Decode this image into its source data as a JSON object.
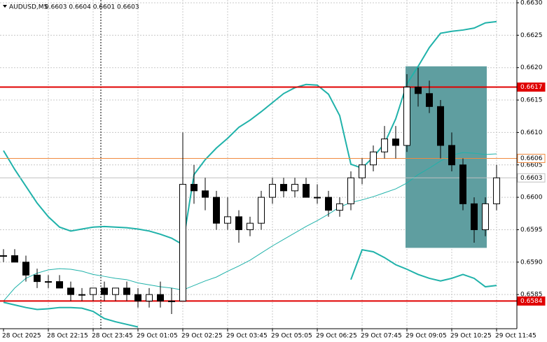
{
  "chart_data": {
    "type": "candlestick",
    "title": "AUDUSD,M5",
    "subtitle": "0.6603 0.6604 0.6601 0.6603",
    "categories": [
      "28 Oct 2025",
      null,
      null,
      null,
      "28 Oct 22:15",
      null,
      null,
      null,
      "28 Oct 23:45",
      null,
      null,
      null,
      "29 Oct 01:05",
      null,
      null,
      null,
      "29 Oct 02:25",
      null,
      null,
      null,
      "29 Oct 03:45",
      null,
      null,
      null,
      "29 Oct 05:05",
      null,
      null,
      null,
      "29 Oct 06:25",
      null,
      null,
      null,
      "29 Oct 07:45",
      null,
      null,
      null,
      "29 Oct 09:05",
      null,
      null,
      null,
      "29 Oct 10:25",
      null,
      null,
      null,
      "29 Oct 11:45"
    ],
    "open": [
      0.6591,
      0.6591,
      0.659,
      0.6588,
      0.6587,
      0.6587,
      0.6586,
      0.6585,
      0.6585,
      0.6586,
      0.6585,
      0.6586,
      0.6585,
      0.6584,
      0.6585,
      0.6584,
      0.6584,
      0.6602,
      0.6601,
      0.66,
      0.6596,
      0.6597,
      0.6595,
      0.6596,
      0.66,
      0.6602,
      0.6601,
      0.6602,
      0.66,
      0.66,
      0.6598,
      0.6599,
      0.6603,
      0.6605,
      0.6607,
      0.6609,
      0.6608,
      0.6617,
      0.6616,
      0.6614,
      0.6608,
      0.6605,
      0.6599,
      0.6595,
      0.6599
    ],
    "high": [
      0.6592,
      0.6592,
      0.6591,
      0.6589,
      0.6588,
      0.6588,
      0.6587,
      0.6586,
      0.6586,
      0.6587,
      0.6586,
      0.6587,
      0.6586,
      0.6586,
      0.6587,
      0.6586,
      0.661,
      0.6605,
      0.6603,
      0.6601,
      0.66,
      0.6598,
      0.6597,
      0.6601,
      0.6603,
      0.6603,
      0.6603,
      0.6603,
      0.6602,
      0.6601,
      0.66,
      0.6604,
      0.6606,
      0.6608,
      0.6611,
      0.6611,
      0.6619,
      0.662,
      0.6618,
      0.6615,
      0.661,
      0.6606,
      0.66,
      0.66,
      0.6605
    ],
    "low": [
      0.659,
      0.659,
      0.6587,
      0.6586,
      0.6586,
      0.6586,
      0.6584,
      0.6584,
      0.6584,
      0.6584,
      0.6584,
      0.6584,
      0.6583,
      0.6583,
      0.6583,
      0.6582,
      0.6584,
      0.6599,
      0.6598,
      0.6595,
      0.6595,
      0.6593,
      0.6594,
      0.6595,
      0.6599,
      0.66,
      0.66,
      0.66,
      0.6599,
      0.6597,
      0.6597,
      0.6598,
      0.6602,
      0.6604,
      0.6606,
      0.6606,
      0.6607,
      0.6614,
      0.6613,
      0.6606,
      0.6604,
      0.6598,
      0.6593,
      0.6594,
      0.6598
    ],
    "close": [
      0.6591,
      0.659,
      0.6588,
      0.6587,
      0.6587,
      0.6586,
      0.6585,
      0.6585,
      0.6586,
      0.6585,
      0.6586,
      0.6585,
      0.6584,
      0.6585,
      0.6584,
      0.6584,
      0.6602,
      0.6601,
      0.66,
      0.6596,
      0.6597,
      0.6595,
      0.6596,
      0.66,
      0.6602,
      0.6601,
      0.6602,
      0.66,
      0.66,
      0.6598,
      0.6599,
      0.6603,
      0.6605,
      0.6607,
      0.6609,
      0.6608,
      0.6617,
      0.6616,
      0.6614,
      0.6608,
      0.6605,
      0.6599,
      0.6595,
      0.6599,
      0.6603
    ],
    "up_color": "#ffffff",
    "down_color": "#000000",
    "bands": {
      "color": "#20b2aa",
      "upper": [
        0.66072,
        0.66043,
        0.66017,
        0.65991,
        0.6597,
        0.65954,
        0.65948,
        0.65951,
        0.65954,
        0.65955,
        0.65954,
        0.65953,
        0.65951,
        0.65948,
        0.65943,
        0.65937,
        0.65927,
        0.66035,
        0.66058,
        0.66076,
        0.66091,
        0.66108,
        0.66119,
        0.66132,
        0.66146,
        0.6616,
        0.66169,
        0.66174,
        0.66173,
        0.66159,
        0.66126,
        0.66051,
        0.66045,
        0.66062,
        0.66083,
        0.66121,
        0.66175,
        0.66202,
        0.66231,
        0.66253,
        0.66256,
        0.66258,
        0.66261,
        0.66269,
        0.66271
      ],
      "middle": [
        0.6584,
        0.6586,
        0.65875,
        0.65883,
        0.65888,
        0.6589,
        0.65889,
        0.65886,
        0.65881,
        0.65878,
        0.65875,
        0.65873,
        0.65868,
        0.65865,
        0.65862,
        0.6586,
        0.65857,
        0.65864,
        0.65871,
        0.65877,
        0.65886,
        0.65894,
        0.65903,
        0.65914,
        0.65925,
        0.65935,
        0.65945,
        0.65955,
        0.65964,
        0.65974,
        0.65985,
        0.65992,
        0.65996,
        0.66001,
        0.66007,
        0.66013,
        0.66022,
        0.66035,
        0.66045,
        0.66056,
        0.66065,
        0.66069,
        0.66068,
        0.66066,
        0.66067
      ],
      "lower": [
        0.65838,
        0.65834,
        0.6583,
        0.65827,
        0.65828,
        0.6583,
        0.6583,
        0.65829,
        0.65824,
        0.65813,
        0.65808,
        0.65804,
        0.658,
        null,
        null,
        null,
        null,
        null,
        null,
        null,
        null,
        null,
        null,
        null,
        null,
        null,
        null,
        null,
        null,
        null,
        null,
        0.65873,
        0.65919,
        0.65916,
        0.65907,
        0.65896,
        0.65889,
        0.65881,
        0.65875,
        0.65871,
        0.65875,
        0.65881,
        0.65875,
        0.65862,
        0.65864
      ]
    },
    "levels": [
      {
        "value": 0.6617,
        "color": "#e00000",
        "label_bg": "#e00000",
        "label_color": "#ffffff",
        "width": 2
      },
      {
        "value": 0.6606,
        "color": "#f08a40",
        "label_bg": "#ffffff",
        "label_color": "#000000",
        "width": 1
      },
      {
        "value": 0.6603,
        "color": "#c0c0c0",
        "label_bg": "#ffffff",
        "label_color": "#000000",
        "width": 1
      },
      {
        "value": 0.6584,
        "color": "#e00000",
        "label_bg": "#e00000",
        "label_color": "#ffffff",
        "width": 2
      }
    ],
    "zone": {
      "color": "#5f9ea0",
      "ylim": [
        0.65922,
        0.66202
      ],
      "index_range": [
        36,
        43
      ]
    },
    "ylim": [
      0.658,
      0.663
    ],
    "yticks": [
      {
        "value": 0.663,
        "label": "0.6630"
      },
      0.6625,
      {
        "value": 0.662,
        "label": "0.6620"
      },
      0.6615,
      {
        "value": 0.661,
        "label": "0.6610"
      },
      0.6605,
      {
        "value": 0.66,
        "label": "0.6600"
      },
      0.6595,
      {
        "value": 0.659,
        "label": "0.6590"
      },
      0.6585
    ],
    "grid": true
  }
}
